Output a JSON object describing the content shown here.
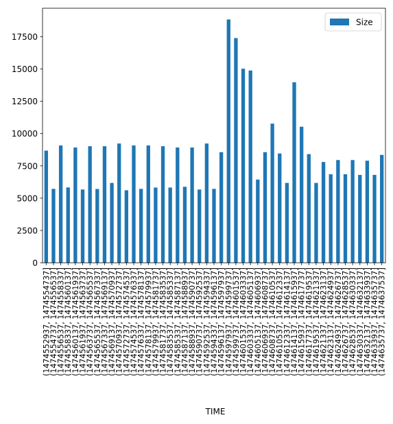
{
  "chart_data": {
    "type": "bar",
    "title": "",
    "xlabel": "TIME",
    "ylabel": "",
    "ylim": [
      0,
      19700
    ],
    "yticks": [
      0,
      2500,
      5000,
      7500,
      10000,
      12500,
      15000,
      17500
    ],
    "grid": false,
    "legend_position": "top-right",
    "colors": {
      "bar": "#1f77b4"
    },
    "categories": [
      "(1474552937, 1474554737]",
      "(1474554737, 1474556537]",
      "(1474556537, 1474558337]",
      "(1474558337, 1474560137]",
      "(1474560137, 1474561937]",
      "(1474561937, 1474563737]",
      "(1474563737, 1474565537]",
      "(1474565537, 1474567337]",
      "(1474567337, 1474569137]",
      "(1474569137, 1474570937]",
      "(1474570937, 1474572737]",
      "(1474572737, 1474574537]",
      "(1474574537, 1474576337]",
      "(1474576337, 1474578137]",
      "(1474578137, 1474579937]",
      "(1474579937, 1474581737]",
      "(1474581737, 1474583537]",
      "(1474583537, 1474585337]",
      "(1474585337, 1474587137]",
      "(1474587137, 1474588937]",
      "(1474588937, 1474590737]",
      "(1474590737, 1474592537]",
      "(1474592537, 1474594337]",
      "(1474594337, 1474596137]",
      "(1474596137, 1474597937]",
      "(1474597937, 1474599737]",
      "(1474599737, 1474601537]",
      "(1474601537, 1474603337]",
      "(1474603337, 1474605137]",
      "(1474605137, 1474606937]",
      "(1474606937, 1474608737]",
      "(1474608737, 1474610537]",
      "(1474610537, 1474612337]",
      "(1474612337, 1474614137]",
      "(1474614137, 1474615937]",
      "(1474615937, 1474617737]",
      "(1474617737, 1474619537]",
      "(1474619537, 1474621337]",
      "(1474621337, 1474623137]",
      "(1474623137, 1474624937]",
      "(1474624937, 1474626737]",
      "(1474626737, 1474628537]",
      "(1474628537, 1474630337]",
      "(1474630337, 1474632137]",
      "(1474632137, 1474633937]",
      "(1474633937, 1474635737]",
      "(1474635737, 1474637537]"
    ],
    "series": [
      {
        "name": "Size",
        "values": [
          8680,
          5720,
          9080,
          5830,
          8920,
          5670,
          9020,
          5710,
          9020,
          6180,
          9230,
          5610,
          9080,
          5720,
          9080,
          5820,
          9020,
          5820,
          8920,
          5880,
          8920,
          5670,
          9230,
          5720,
          8560,
          18830,
          17390,
          15020,
          14880,
          6440,
          8560,
          10770,
          8460,
          6180,
          13970,
          10530,
          8410,
          6180,
          7800,
          6850,
          7950,
          6850,
          7950,
          6800,
          7900,
          6800,
          8350
        ]
      }
    ]
  }
}
